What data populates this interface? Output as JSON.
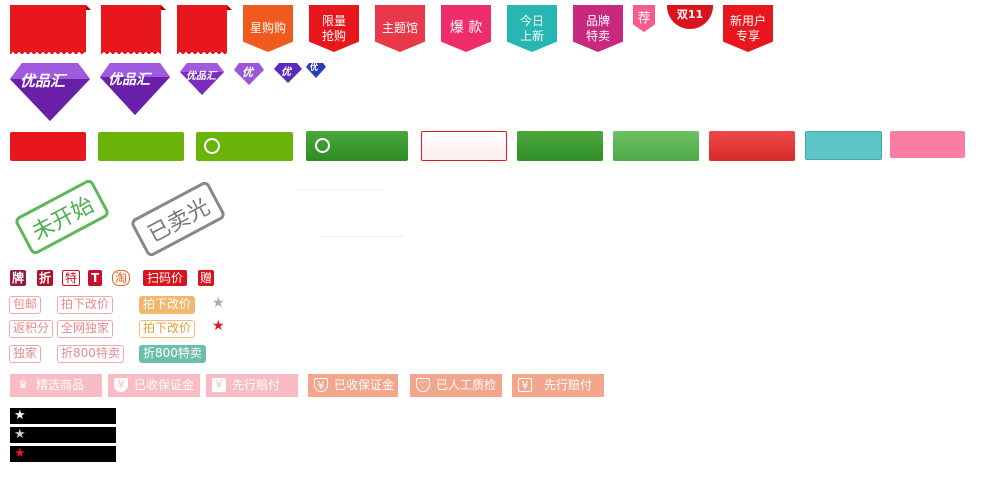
{
  "ribbons": {
    "r1": "星购购",
    "r2_l1": "限量",
    "r2_l2": "抢购",
    "r3": "主题馆",
    "r4": "爆 款",
    "r5_l1": "今日",
    "r5_l2": "上新",
    "r6_l1": "品牌",
    "r6_l2": "特卖",
    "r7": "荐",
    "r8": "双11",
    "r9_l1": "新用户",
    "r9_l2": "专享"
  },
  "diamonds": {
    "big": "优品汇",
    "mid": "优品汇",
    "small": "优",
    "tiny": "优",
    "micro": "优"
  },
  "stamps": {
    "not_started": "未开始",
    "sold_out": "已卖光"
  },
  "icon_tags": {
    "pai": "牌",
    "zhe": "折",
    "te": "特",
    "t": "T",
    "tao": "淘",
    "scan": "扫码价",
    "zeng": "赠"
  },
  "outline_tags": {
    "baoyou": "包邮",
    "paixia1": "拍下改价",
    "paixia2": "拍下改价",
    "paixia3": "拍下改价",
    "fanjifen": "返积分",
    "quanwang": "全网独家",
    "dujia": "独家",
    "zhe800": "折800特卖",
    "zhe800_filled": "折800特卖"
  },
  "service_badges": {
    "jingxuan": "精选商品",
    "baozhengjin1": "已收保证金",
    "xianxing1": "先行赔付",
    "baozhengjin2": "已收保证金",
    "rengong": "已人工质检",
    "xianxing2": "先行赔付"
  },
  "colors": {
    "red": "#e8161d",
    "green": "#6ab40a",
    "dark_green": "#3a9a2a",
    "teal": "#5cc6c6",
    "pink": "#fb7ea2",
    "service_pink": "#f8bcc4",
    "service_orange": "#f2a68c"
  }
}
